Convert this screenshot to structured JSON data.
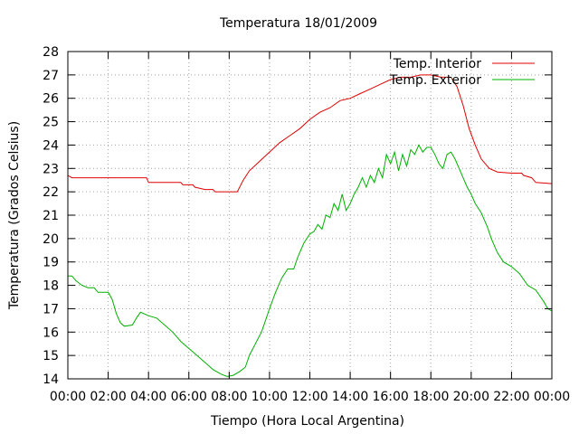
{
  "chart_data": {
    "type": "line",
    "title": "Temperatura 18/01/2009",
    "xlabel": "Tiempo (Hora Local Argentina)",
    "ylabel": "Temperatura (Grados Celsius)",
    "xlim": [
      0,
      24
    ],
    "ylim": [
      14,
      28
    ],
    "x_tick_labels": [
      "00:00",
      "02:00",
      "04:00",
      "06:00",
      "08:00",
      "10:00",
      "12:00",
      "14:00",
      "16:00",
      "18:00",
      "20:00",
      "22:00",
      "00:00"
    ],
    "y_ticks": [
      14,
      15,
      16,
      17,
      18,
      19,
      20,
      21,
      22,
      23,
      24,
      25,
      26,
      27,
      28
    ],
    "grid": true,
    "legend_position": "top-right",
    "series": [
      {
        "name": "Temp. Interior",
        "color": "#e00000",
        "points": [
          [
            0,
            22.7
          ],
          [
            0.2,
            22.6
          ],
          [
            0.5,
            22.6
          ],
          [
            1,
            22.6
          ],
          [
            2,
            22.6
          ],
          [
            3,
            22.6
          ],
          [
            3.9,
            22.6
          ],
          [
            4.0,
            22.4
          ],
          [
            5,
            22.4
          ],
          [
            5.6,
            22.4
          ],
          [
            5.7,
            22.3
          ],
          [
            6.2,
            22.3
          ],
          [
            6.3,
            22.2
          ],
          [
            6.8,
            22.1
          ],
          [
            7.2,
            22.1
          ],
          [
            7.3,
            22.0
          ],
          [
            8.0,
            22.0
          ],
          [
            8.4,
            22.0
          ],
          [
            8.7,
            22.5
          ],
          [
            9.0,
            22.9
          ],
          [
            9.5,
            23.3
          ],
          [
            10,
            23.7
          ],
          [
            10.5,
            24.1
          ],
          [
            11,
            24.4
          ],
          [
            11.5,
            24.7
          ],
          [
            12,
            25.1
          ],
          [
            12.5,
            25.4
          ],
          [
            13,
            25.6
          ],
          [
            13.5,
            25.9
          ],
          [
            14,
            26.0
          ],
          [
            14.5,
            26.2
          ],
          [
            15,
            26.4
          ],
          [
            15.5,
            26.6
          ],
          [
            16,
            26.8
          ],
          [
            16.5,
            26.9
          ],
          [
            17,
            26.9
          ],
          [
            17.5,
            27.0
          ],
          [
            18,
            27.0
          ],
          [
            18.5,
            26.9
          ],
          [
            19,
            26.9
          ],
          [
            19.3,
            26.5
          ],
          [
            19.6,
            25.7
          ],
          [
            19.9,
            24.7
          ],
          [
            20.2,
            24.0
          ],
          [
            20.5,
            23.4
          ],
          [
            20.9,
            23.0
          ],
          [
            21.3,
            22.85
          ],
          [
            22,
            22.8
          ],
          [
            22.5,
            22.8
          ],
          [
            22.6,
            22.7
          ],
          [
            23,
            22.6
          ],
          [
            23.2,
            22.4
          ],
          [
            24,
            22.35
          ]
        ]
      },
      {
        "name": "Temp. Exterior",
        "color": "#00b000",
        "points": [
          [
            0,
            18.4
          ],
          [
            0.2,
            18.4
          ],
          [
            0.4,
            18.2
          ],
          [
            0.7,
            18.0
          ],
          [
            1.0,
            17.9
          ],
          [
            1.3,
            17.9
          ],
          [
            1.5,
            17.7
          ],
          [
            2.0,
            17.7
          ],
          [
            2.2,
            17.4
          ],
          [
            2.4,
            16.8
          ],
          [
            2.6,
            16.4
          ],
          [
            2.8,
            16.25
          ],
          [
            3.2,
            16.3
          ],
          [
            3.4,
            16.6
          ],
          [
            3.6,
            16.85
          ],
          [
            4.0,
            16.7
          ],
          [
            4.4,
            16.6
          ],
          [
            4.8,
            16.3
          ],
          [
            5.2,
            16.0
          ],
          [
            5.6,
            15.6
          ],
          [
            6.0,
            15.3
          ],
          [
            6.4,
            15.0
          ],
          [
            6.8,
            14.7
          ],
          [
            7.2,
            14.4
          ],
          [
            7.6,
            14.2
          ],
          [
            7.9,
            14.1
          ],
          [
            8.2,
            14.15
          ],
          [
            8.5,
            14.3
          ],
          [
            8.8,
            14.5
          ],
          [
            9.0,
            15.0
          ],
          [
            9.3,
            15.5
          ],
          [
            9.6,
            16.0
          ],
          [
            9.8,
            16.5
          ],
          [
            10.0,
            17.0
          ],
          [
            10.3,
            17.7
          ],
          [
            10.6,
            18.3
          ],
          [
            10.9,
            18.7
          ],
          [
            11.2,
            18.7
          ],
          [
            11.4,
            19.2
          ],
          [
            11.7,
            19.8
          ],
          [
            12.0,
            20.2
          ],
          [
            12.2,
            20.3
          ],
          [
            12.4,
            20.6
          ],
          [
            12.6,
            20.4
          ],
          [
            12.8,
            21.0
          ],
          [
            13.0,
            20.9
          ],
          [
            13.2,
            21.5
          ],
          [
            13.4,
            21.2
          ],
          [
            13.6,
            21.9
          ],
          [
            13.8,
            21.2
          ],
          [
            14.0,
            21.5
          ],
          [
            14.2,
            21.9
          ],
          [
            14.4,
            22.2
          ],
          [
            14.6,
            22.6
          ],
          [
            14.8,
            22.2
          ],
          [
            15.0,
            22.7
          ],
          [
            15.2,
            22.4
          ],
          [
            15.4,
            23.0
          ],
          [
            15.6,
            22.6
          ],
          [
            15.8,
            23.6
          ],
          [
            16.0,
            23.2
          ],
          [
            16.2,
            23.7
          ],
          [
            16.4,
            22.9
          ],
          [
            16.6,
            23.6
          ],
          [
            16.8,
            23.1
          ],
          [
            17.0,
            23.8
          ],
          [
            17.2,
            23.6
          ],
          [
            17.4,
            24.0
          ],
          [
            17.6,
            23.7
          ],
          [
            17.8,
            23.9
          ],
          [
            18.0,
            23.9
          ],
          [
            18.2,
            23.6
          ],
          [
            18.4,
            23.2
          ],
          [
            18.6,
            23.0
          ],
          [
            18.8,
            23.6
          ],
          [
            19.0,
            23.7
          ],
          [
            19.2,
            23.4
          ],
          [
            19.4,
            23.0
          ],
          [
            19.6,
            22.6
          ],
          [
            19.8,
            22.2
          ],
          [
            20.0,
            21.9
          ],
          [
            20.2,
            21.5
          ],
          [
            20.5,
            21.1
          ],
          [
            20.8,
            20.5
          ],
          [
            21.0,
            20.0
          ],
          [
            21.3,
            19.4
          ],
          [
            21.6,
            19.0
          ],
          [
            22.0,
            18.8
          ],
          [
            22.4,
            18.5
          ],
          [
            22.8,
            18.0
          ],
          [
            23.2,
            17.8
          ],
          [
            23.6,
            17.3
          ],
          [
            23.8,
            17.0
          ],
          [
            24.0,
            16.9
          ]
        ]
      }
    ]
  }
}
